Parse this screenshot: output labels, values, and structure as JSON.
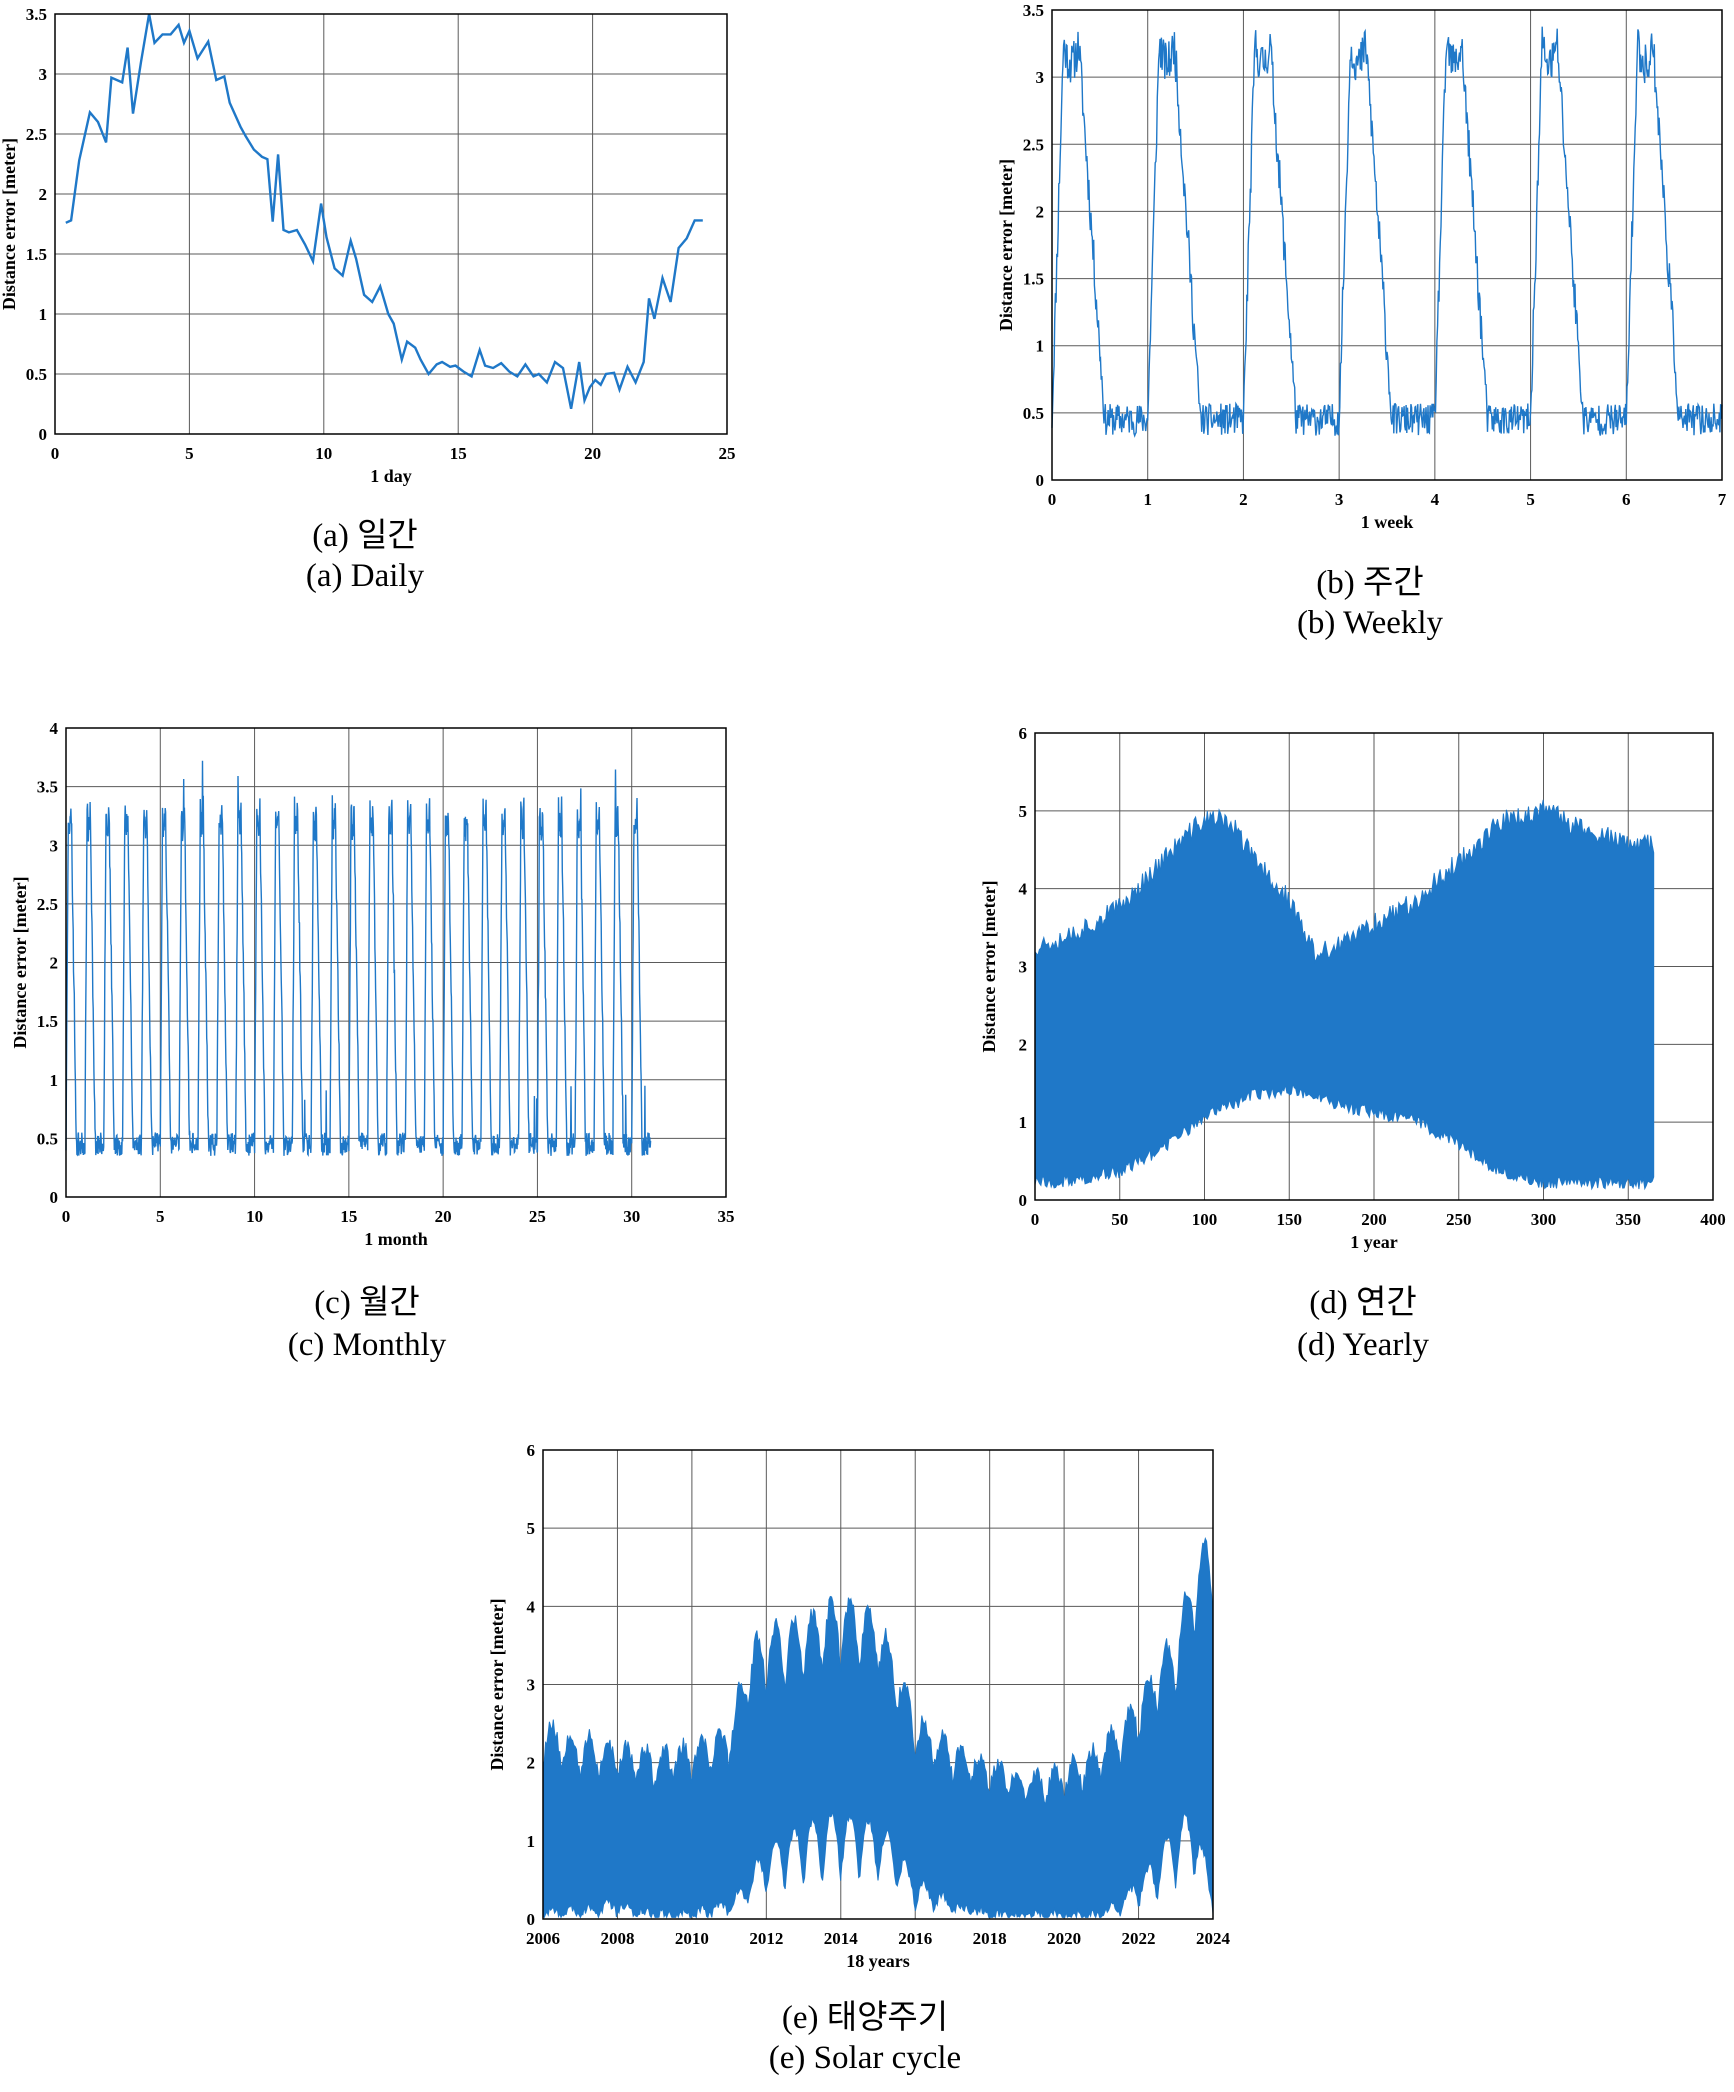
{
  "figure": {
    "ylabel": "Distance error [meter]",
    "line_color": "#1f78c8",
    "grid_color": "#5a5a5a"
  },
  "chart_data": [
    {
      "id": "a",
      "type": "line",
      "caption_ko": "(a)  일간",
      "caption_en": "(a)  Daily",
      "xlabel": "1 day",
      "ylabel": "Distance error [meter]",
      "xlim": [
        0,
        25
      ],
      "ylim": [
        0,
        3.5
      ],
      "xticks": [
        0,
        5,
        10,
        15,
        20,
        25
      ],
      "xtick_labels": [
        "0",
        "5",
        "10",
        "15",
        "20",
        "25"
      ],
      "yticks": [
        0,
        0.5,
        1,
        1.5,
        2,
        2.5,
        3,
        3.5
      ],
      "ytick_labels": [
        "0",
        "0.5",
        "1",
        "1.5",
        "2",
        "2.5",
        "3",
        "3.5"
      ],
      "grid": true,
      "series": [
        {
          "x": [
            0.4,
            0.6,
            0.9,
            1.3,
            1.6,
            1.9,
            2.1,
            2.5,
            2.7,
            2.9,
            3.2,
            3.5,
            3.7,
            4.0,
            4.3,
            4.6,
            4.8,
            5.0,
            5.3,
            5.7,
            6.0,
            6.3,
            6.5,
            6.9,
            7.1,
            7.4,
            7.7,
            7.9,
            8.1,
            8.3,
            8.5,
            8.7,
            9.0,
            9.3,
            9.6,
            9.9,
            10.1,
            10.4,
            10.7,
            11.0,
            11.2,
            11.5,
            11.8,
            12.1,
            12.4,
            12.6,
            12.9,
            13.1,
            13.4,
            13.6,
            13.9,
            14.2,
            14.4,
            14.7,
            14.9,
            15.2,
            15.5,
            15.8,
            16.0,
            16.3,
            16.6,
            16.9,
            17.2,
            17.5,
            17.8,
            18.0,
            18.3,
            18.6,
            18.9,
            19.2,
            19.5,
            19.7,
            19.9,
            20.1,
            20.3,
            20.5,
            20.8,
            21.0,
            21.3,
            21.6,
            21.9,
            22.1,
            22.3,
            22.6,
            22.9,
            23.2,
            23.5,
            23.8,
            24.1
          ],
          "y": [
            1.76,
            1.78,
            2.28,
            2.68,
            2.6,
            2.43,
            2.97,
            2.93,
            3.22,
            2.67,
            3.1,
            3.5,
            3.26,
            3.33,
            3.33,
            3.41,
            3.26,
            3.36,
            3.13,
            3.27,
            2.95,
            2.98,
            2.76,
            2.56,
            2.48,
            2.37,
            2.31,
            2.29,
            1.77,
            2.33,
            1.7,
            1.68,
            1.7,
            1.58,
            1.44,
            1.92,
            1.64,
            1.38,
            1.32,
            1.61,
            1.46,
            1.16,
            1.1,
            1.23,
            1.0,
            0.92,
            0.62,
            0.77,
            0.72,
            0.62,
            0.5,
            0.58,
            0.6,
            0.56,
            0.57,
            0.52,
            0.48,
            0.7,
            0.57,
            0.55,
            0.59,
            0.52,
            0.48,
            0.58,
            0.48,
            0.5,
            0.43,
            0.6,
            0.55,
            0.21,
            0.6,
            0.28,
            0.39,
            0.45,
            0.41,
            0.5,
            0.51,
            0.37,
            0.56,
            0.43,
            0.6,
            1.13,
            0.96,
            1.3,
            1.1,
            1.55,
            1.63,
            1.78,
            1.78
          ]
        }
      ]
    },
    {
      "id": "b",
      "type": "line",
      "caption_ko": "(b)  주간",
      "caption_en": "(b)  Weekly",
      "xlabel": "1 week",
      "ylabel": "Distance error [meter]",
      "xlim": [
        0,
        7
      ],
      "ylim": [
        0,
        3.5
      ],
      "xticks": [
        0,
        1,
        2,
        3,
        4,
        5,
        6,
        7
      ],
      "xtick_labels": [
        "0",
        "1",
        "2",
        "3",
        "4",
        "5",
        "6",
        "7"
      ],
      "yticks": [
        0,
        0.5,
        1,
        1.5,
        2,
        2.5,
        3,
        3.5
      ],
      "ytick_labels": [
        "0",
        "0.5",
        "1",
        "1.5",
        "2",
        "2.5",
        "3",
        "3.5"
      ],
      "grid": true,
      "pattern": {
        "cycles": 7,
        "period": 1.0,
        "min": 0.45,
        "max": 3.25,
        "noise": 0.12
      }
    },
    {
      "id": "c",
      "type": "line",
      "caption_ko": "(c)  월간",
      "caption_en": "(c)  Monthly",
      "xlabel": "1 month",
      "ylabel": "Distance error [meter]",
      "xlim": [
        0,
        35
      ],
      "ylim": [
        0,
        4
      ],
      "xticks": [
        0,
        5,
        10,
        15,
        20,
        25,
        30,
        35
      ],
      "xtick_labels": [
        "0",
        "5",
        "10",
        "15",
        "20",
        "25",
        "30",
        "35"
      ],
      "yticks": [
        0,
        0.5,
        1,
        1.5,
        2,
        2.5,
        3,
        3.5,
        4
      ],
      "ytick_labels": [
        "0",
        "0.5",
        "1",
        "1.5",
        "2",
        "2.5",
        "3",
        "3.5",
        "4"
      ],
      "grid": true,
      "pattern": {
        "cycles": 31,
        "period": 1.0,
        "min": 0.45,
        "max": 3.3,
        "noise": 0.1
      }
    },
    {
      "id": "d",
      "type": "area",
      "caption_ko": "(d)  연간",
      "caption_en": "(d)  Yearly",
      "xlabel": "1 year",
      "ylabel": "Distance error [meter]",
      "xlim": [
        0,
        400
      ],
      "ylim": [
        0,
        6
      ],
      "xticks": [
        0,
        50,
        100,
        150,
        200,
        250,
        300,
        350,
        400
      ],
      "xtick_labels": [
        "0",
        "50",
        "100",
        "150",
        "200",
        "250",
        "300",
        "350",
        "400"
      ],
      "yticks": [
        0,
        1,
        2,
        3,
        4,
        5,
        6
      ],
      "ytick_labels": [
        "0",
        "1",
        "2",
        "3",
        "4",
        "5",
        "6"
      ],
      "grid": true,
      "envelope": {
        "x": [
          0,
          25,
          50,
          75,
          100,
          115,
          130,
          150,
          165,
          180,
          200,
          225,
          250,
          275,
          300,
          325,
          350,
          365
        ],
        "upper": [
          3.2,
          3.4,
          3.7,
          4.3,
          4.85,
          4.8,
          4.3,
          3.8,
          3.1,
          3.2,
          3.5,
          3.8,
          4.3,
          4.8,
          4.95,
          4.7,
          4.5,
          4.5
        ],
        "lower": [
          0.3,
          0.35,
          0.45,
          0.75,
          1.15,
          1.3,
          1.45,
          1.5,
          1.45,
          1.3,
          1.2,
          1.1,
          0.8,
          0.45,
          0.3,
          0.3,
          0.3,
          0.3
        ]
      }
    },
    {
      "id": "e",
      "type": "area",
      "caption_ko": "(e)  태양주기",
      "caption_en": "(e)  Solar  cycle",
      "xlabel": "18 years",
      "ylabel": "Distance error [meter]",
      "xlim": [
        2006,
        2024
      ],
      "ylim": [
        0,
        6
      ],
      "xticks": [
        2006,
        2008,
        2010,
        2012,
        2014,
        2016,
        2018,
        2020,
        2022,
        2024
      ],
      "xtick_labels": [
        "2006",
        "2008",
        "2010",
        "2012",
        "2014",
        "2016",
        "2018",
        "2020",
        "2022",
        "2024"
      ],
      "yticks": [
        0,
        1,
        2,
        3,
        4,
        5,
        6
      ],
      "ytick_labels": [
        "0",
        "1",
        "2",
        "3",
        "4",
        "5",
        "6"
      ],
      "grid": true,
      "envelope": {
        "x": [
          2006.0,
          2007.0,
          2008.0,
          2009.0,
          2010.0,
          2011.0,
          2011.5,
          2012.0,
          2013.0,
          2014.0,
          2015.0,
          2015.5,
          2016.0,
          2017.0,
          2018.0,
          2019.0,
          2020.0,
          2021.0,
          2022.0,
          2022.5,
          2023.0,
          2023.5,
          2024.0
        ],
        "upper": [
          2.5,
          2.3,
          2.2,
          2.1,
          2.2,
          2.4,
          3.4,
          3.7,
          3.8,
          4.1,
          3.9,
          3.3,
          2.6,
          2.2,
          2.0,
          1.8,
          1.9,
          2.2,
          2.8,
          3.3,
          3.6,
          4.6,
          5.0
        ],
        "lower": [
          0.1,
          0.15,
          0.2,
          0.1,
          0.1,
          0.2,
          0.4,
          0.7,
          0.9,
          1.0,
          0.9,
          0.7,
          0.4,
          0.2,
          0.1,
          0.1,
          0.1,
          0.1,
          0.4,
          0.6,
          0.9,
          1.0,
          0.3
        ]
      }
    }
  ]
}
